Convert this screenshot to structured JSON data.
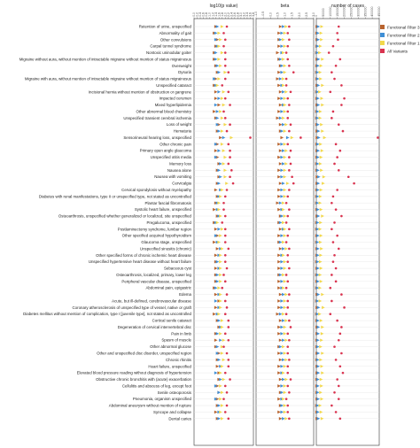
{
  "colors": {
    "Functional Filter 3": "#b8632e",
    "Functional Filter 2": "#3f8fd6",
    "Functional Filter 1": "#f2d84b",
    "All Variants": "#d9334f"
  },
  "chart_data": {
    "type": "scatter",
    "panels": [
      {
        "title": "log10(p value)",
        "ticks": [
          "0.0",
          "0.2",
          "0.4",
          "0.6",
          "0.8",
          "1.0",
          "1.2",
          "1.4",
          "1.6",
          "1.8",
          "2.0",
          "2.2",
          "2.4",
          "2.6",
          "2.8",
          "3.0",
          "3.2",
          "3.4",
          "3.6",
          "3.8"
        ],
        "xlim": [
          0.0,
          3.8
        ]
      },
      {
        "title": "beta",
        "ticks": [
          "-1.0",
          "-0.5",
          "0.0",
          "0.5",
          "1.0",
          "1.5",
          "2.0",
          "2.5",
          "3.0"
        ],
        "xlim": [
          -1.0,
          3.0
        ]
      },
      {
        "title": "number of cases",
        "ticks": [
          "0",
          "50000",
          "100000",
          "150000",
          "200000",
          "250000",
          "300000",
          "350000",
          "400000",
          "450000"
        ],
        "xlim": [
          0,
          450000
        ]
      }
    ],
    "legend": {
      "placement": "top-right",
      "entries": [
        "Functional Filter 3",
        "Functional Filter 2",
        "Functional Filter 1",
        "All Variants"
      ]
    },
    "series_names": [
      "Functional Filter 3",
      "Functional Filter 2",
      "Functional Filter 1",
      "All Variants"
    ],
    "markers": [
      "triangle",
      "triangle",
      "triangle",
      "dot"
    ],
    "categories": [
      "Retention of urine, unspecified",
      "Abnormality of gait",
      "Other convulsions",
      "Carpal tunnel syndrome",
      "Nontoxic uninodular goiter",
      "Migraine without aura, without mention of intractable migraine without mention of status migrainosus",
      "Overweight",
      "Dysuria",
      "Migraine with aura, without mention of intractable migraine without mention of status migrainosus",
      "Unspecified cataract",
      "Incisional hernia without mention of obstruction or gangrene",
      "Impacted cerumen",
      "Mixed hyperlipidemia",
      "Other abnormal blood chemistry",
      "Unspecified transient cerebral ischemia",
      "Loss of weight",
      "Hematuria",
      "Sensorineural hearing loss, unspecified",
      "Other chronic pain",
      "Primary open angle glaucoma",
      "Unspecified otitis media",
      "Memory loss",
      "Nausea alone",
      "Nausea with vomiting",
      "Cervicalgia",
      "Cervical spondylosis without myelopathy",
      "Diabetes with renal manifestations, type II or unspecified type, not stated as uncontrolled",
      "Plantar fascial fibromatosis",
      "Systolic heart failure, unspecified",
      "Osteoarthrosis, unspecified whether generalized or localized, site unspecified",
      "Pregalucoma, unspecified",
      "Postlaminectomy syndrome, lumbar region",
      "Other specified acquired hypothyroidism",
      "Glaucoma stage, unspecified",
      "Unspecified sinusitis (chronic)",
      "Other specified forms of chronic ischemic heart disease",
      "Unspecified hypertensive heart disease without heart failure",
      "Sebaceous cyst",
      "Osteoarthrosis, localized, primary, lower leg",
      "Peripheral vascular disease, unspecified",
      "Abdominal pain, epigastric",
      "Edema",
      "Acute, but ill-defined, cerebrovascular disease",
      "Coronary atherosclerosis of unspecified type of vessel, native or graft",
      "Diabetes mellitus without mention of complication, type I [juvenile type], not stated as uncontrolled",
      "Cortical senile cataract",
      "Degeneration of cervical intervertebral disc",
      "Pain in limb",
      "Spasm of muscle",
      "Other abnormal glucose",
      "Other and unspecified disc disorder, unspecified region",
      "Chronic rhinitis",
      "Heart failure, unspecified",
      "Elevated blood pressure reading without diagnosis of hypertension",
      "Obstructive chronic bronchitis with (acute) exacerbation",
      "Cellulitis and abscess of leg, except foot",
      "Senile osteoporosis",
      "Pneumonia, organism unspecified",
      "Abdominal aneurysm without mention of rupture",
      "Syncope and collapse",
      "Dental caries"
    ],
    "pvalues": [
      [
        1.4,
        1.5,
        1.8,
        2.1
      ],
      [
        1.3,
        1.4,
        1.6,
        1.9
      ],
      [
        1.5,
        1.4,
        1.7,
        2.0
      ],
      [
        1.4,
        1.5,
        1.6,
        1.9
      ],
      [
        1.3,
        1.4,
        1.8,
        2.0
      ],
      [
        1.3,
        1.4,
        1.6,
        2.0
      ],
      [
        1.4,
        1.5,
        1.7,
        2.0
      ],
      [
        1.5,
        1.6,
        2.0,
        2.2
      ],
      [
        1.4,
        1.3,
        1.6,
        2.0
      ],
      [
        1.3,
        1.4,
        1.5,
        1.8
      ],
      [
        1.4,
        1.6,
        1.9,
        2.2
      ],
      [
        1.4,
        1.6,
        1.8,
        2.0
      ],
      [
        1.6,
        1.4,
        1.9,
        2.3
      ],
      [
        1.3,
        1.5,
        1.7,
        1.9
      ],
      [
        1.4,
        1.5,
        1.8,
        2.0
      ],
      [
        1.6,
        1.5,
        2.0,
        2.3
      ],
      [
        1.5,
        1.6,
        1.8,
        2.1
      ],
      [
        1.7,
        1.9,
        2.4,
        3.6
      ],
      [
        1.5,
        1.4,
        1.8,
        2.2
      ],
      [
        1.4,
        1.6,
        1.9,
        2.3
      ],
      [
        1.5,
        1.4,
        2.0,
        2.3
      ],
      [
        1.6,
        1.7,
        1.9,
        2.2
      ],
      [
        1.5,
        1.6,
        2.0,
        2.4
      ],
      [
        1.6,
        1.7,
        2.0,
        2.3
      ],
      [
        1.5,
        1.6,
        2.1,
        2.5
      ],
      [
        1.4,
        1.7,
        1.8,
        2.1
      ],
      [
        1.5,
        1.6,
        1.7,
        2.0
      ],
      [
        1.4,
        1.5,
        1.6,
        1.9
      ],
      [
        1.3,
        1.5,
        1.6,
        1.9
      ],
      [
        1.5,
        1.6,
        1.7,
        2.0
      ],
      [
        1.3,
        1.4,
        1.5,
        1.8
      ],
      [
        1.4,
        1.6,
        1.8,
        2.0
      ],
      [
        1.5,
        1.4,
        1.7,
        2.0
      ],
      [
        1.3,
        1.5,
        1.6,
        2.0
      ],
      [
        1.5,
        1.7,
        1.8,
        2.2
      ],
      [
        1.4,
        1.6,
        1.7,
        2.0
      ],
      [
        1.4,
        1.5,
        1.7,
        2.0
      ],
      [
        1.4,
        1.6,
        1.7,
        2.1
      ],
      [
        1.4,
        1.5,
        1.7,
        1.9
      ],
      [
        1.4,
        1.5,
        1.7,
        2.0
      ],
      [
        1.3,
        1.4,
        1.6,
        1.8
      ],
      [
        1.4,
        1.6,
        1.7,
        2.1
      ],
      [
        1.6,
        1.4,
        1.7,
        2.0
      ],
      [
        1.4,
        1.6,
        1.7,
        2.1
      ],
      [
        1.3,
        1.5,
        1.6,
        2.0
      ],
      [
        1.5,
        1.6,
        1.8,
        2.2
      ],
      [
        1.6,
        1.7,
        1.8,
        2.2
      ],
      [
        1.4,
        1.5,
        1.7,
        2.0
      ],
      [
        1.4,
        1.7,
        1.9,
        2.2
      ],
      [
        1.4,
        1.5,
        1.8,
        1.9
      ],
      [
        1.6,
        1.5,
        1.8,
        2.1
      ],
      [
        1.5,
        1.6,
        1.9,
        2.2
      ],
      [
        1.5,
        1.7,
        1.8,
        2.2
      ],
      [
        1.6,
        1.4,
        1.7,
        2.0
      ],
      [
        1.6,
        1.7,
        1.9,
        2.3
      ],
      [
        1.5,
        1.4,
        1.7,
        2.0
      ],
      [
        1.6,
        1.6,
        1.8,
        2.1
      ],
      [
        1.5,
        1.4,
        1.7,
        1.9
      ],
      [
        1.5,
        1.6,
        1.8,
        2.1
      ],
      [
        1.4,
        1.6,
        1.7,
        2.0
      ],
      [
        1.5,
        1.6,
        1.8,
        2.2
      ]
    ],
    "betas": [
      [
        0.7,
        0.9,
        1.1,
        1.3
      ],
      [
        0.6,
        0.8,
        1.0,
        1.2
      ],
      [
        0.6,
        0.7,
        0.9,
        1.3
      ],
      [
        0.6,
        0.8,
        1.0,
        1.2
      ],
      [
        0.5,
        0.8,
        0.9,
        1.1
      ],
      [
        0.6,
        0.7,
        0.9,
        1.2
      ],
      [
        0.7,
        0.8,
        1.0,
        1.3
      ],
      [
        0.6,
        0.8,
        1.0,
        1.6
      ],
      [
        0.5,
        0.7,
        0.9,
        1.1
      ],
      [
        0.6,
        0.8,
        0.9,
        1.1
      ],
      [
        0.7,
        0.9,
        1.1,
        1.4
      ],
      [
        0.6,
        0.8,
        1.0,
        1.2
      ],
      [
        0.7,
        0.9,
        1.0,
        1.3
      ],
      [
        0.6,
        0.8,
        1.0,
        1.2
      ],
      [
        0.5,
        0.7,
        0.9,
        1.2
      ],
      [
        0.7,
        0.9,
        1.1,
        1.4
      ],
      [
        0.7,
        0.8,
        1.0,
        1.3
      ],
      [
        0.8,
        1.2,
        1.5,
        2.1
      ],
      [
        0.6,
        0.8,
        1.0,
        1.2
      ],
      [
        0.7,
        0.9,
        1.1,
        1.4
      ],
      [
        0.6,
        0.8,
        1.0,
        1.3
      ],
      [
        0.7,
        0.9,
        1.1,
        1.4
      ],
      [
        0.6,
        0.8,
        1.0,
        1.3
      ],
      [
        0.6,
        0.8,
        1.0,
        1.5
      ],
      [
        0.7,
        0.9,
        1.2,
        1.6
      ],
      [
        0.6,
        0.8,
        1.0,
        1.3
      ],
      [
        0.6,
        0.8,
        1.0,
        1.2
      ],
      [
        0.5,
        0.7,
        0.9,
        1.1
      ],
      [
        0.6,
        0.8,
        0.9,
        1.3
      ],
      [
        0.7,
        0.8,
        1.0,
        1.2
      ],
      [
        0.6,
        0.7,
        0.9,
        1.1
      ],
      [
        0.7,
        0.9,
        1.0,
        1.3
      ],
      [
        0.6,
        0.8,
        1.0,
        1.2
      ],
      [
        0.6,
        0.7,
        0.9,
        1.1
      ],
      [
        0.7,
        0.9,
        1.1,
        1.3
      ],
      [
        0.6,
        0.8,
        0.9,
        1.2
      ],
      [
        0.6,
        0.8,
        1.0,
        1.2
      ],
      [
        0.6,
        0.8,
        1.0,
        1.3
      ],
      [
        0.6,
        0.7,
        0.9,
        1.1
      ],
      [
        0.6,
        0.8,
        1.0,
        1.2
      ],
      [
        0.6,
        0.8,
        0.9,
        1.1
      ],
      [
        0.7,
        0.9,
        1.1,
        1.3
      ],
      [
        0.6,
        0.8,
        1.0,
        1.2
      ],
      [
        0.6,
        0.8,
        1.0,
        1.2
      ],
      [
        0.5,
        0.7,
        0.9,
        1.1
      ],
      [
        0.7,
        0.9,
        1.1,
        1.3
      ],
      [
        0.6,
        0.8,
        1.0,
        1.4
      ],
      [
        0.6,
        0.8,
        1.0,
        1.2
      ],
      [
        0.7,
        0.9,
        1.1,
        1.3
      ],
      [
        0.6,
        0.7,
        0.9,
        1.2
      ],
      [
        0.6,
        0.8,
        1.0,
        1.2
      ],
      [
        0.7,
        0.9,
        1.1,
        1.3
      ],
      [
        0.6,
        0.8,
        1.0,
        1.2
      ],
      [
        0.6,
        0.8,
        0.9,
        1.2
      ],
      [
        0.7,
        0.9,
        1.1,
        1.4
      ],
      [
        0.6,
        0.8,
        1.0,
        1.2
      ],
      [
        0.7,
        0.8,
        1.0,
        1.3
      ],
      [
        0.6,
        0.8,
        0.9,
        1.1
      ],
      [
        0.7,
        0.8,
        1.0,
        1.2
      ],
      [
        0.6,
        0.8,
        1.0,
        1.2
      ],
      [
        0.7,
        0.9,
        1.1,
        1.3
      ]
    ],
    "cases": [
      [
        5000,
        15000,
        40000,
        160000
      ],
      [
        4000,
        12000,
        35000,
        150000
      ],
      [
        5000,
        14000,
        38000,
        155000
      ],
      [
        4000,
        10000,
        30000,
        120000
      ],
      [
        3000,
        8000,
        25000,
        90000
      ],
      [
        5000,
        16000,
        45000,
        170000
      ],
      [
        4000,
        12000,
        35000,
        140000
      ],
      [
        3000,
        9000,
        28000,
        110000
      ],
      [
        4000,
        11000,
        32000,
        130000
      ],
      [
        5000,
        15000,
        45000,
        180000
      ],
      [
        3000,
        9000,
        25000,
        100000
      ],
      [
        4000,
        12000,
        40000,
        200000
      ],
      [
        5000,
        15000,
        45000,
        180000
      ],
      [
        3000,
        10000,
        30000,
        120000
      ],
      [
        3000,
        9000,
        28000,
        110000
      ],
      [
        4000,
        12000,
        38000,
        160000
      ],
      [
        5000,
        16000,
        45000,
        190000
      ],
      [
        6000,
        18000,
        60000,
        440000
      ],
      [
        4000,
        11000,
        32000,
        140000
      ],
      [
        5000,
        14000,
        42000,
        170000
      ],
      [
        4000,
        12000,
        35000,
        150000
      ],
      [
        3000,
        10000,
        30000,
        130000
      ],
      [
        4000,
        12000,
        38000,
        160000
      ],
      [
        6000,
        18000,
        55000,
        230000
      ],
      [
        5000,
        15000,
        50000,
        270000
      ],
      [
        4000,
        12000,
        35000,
        150000
      ],
      [
        3000,
        10000,
        30000,
        120000
      ],
      [
        3000,
        9000,
        28000,
        110000
      ],
      [
        4000,
        12000,
        35000,
        140000
      ],
      [
        5000,
        15000,
        45000,
        180000
      ],
      [
        3000,
        10000,
        32000,
        130000
      ],
      [
        3000,
        10000,
        28000,
        110000
      ],
      [
        4000,
        12000,
        35000,
        150000
      ],
      [
        3000,
        9000,
        30000,
        120000
      ],
      [
        4000,
        12000,
        38000,
        160000
      ],
      [
        4000,
        11000,
        33000,
        130000
      ],
      [
        3000,
        10000,
        30000,
        120000
      ],
      [
        4000,
        12000,
        35000,
        140000
      ],
      [
        3000,
        10000,
        28000,
        110000
      ],
      [
        4000,
        12000,
        35000,
        140000
      ],
      [
        3000,
        9000,
        27000,
        100000
      ],
      [
        5000,
        15000,
        45000,
        180000
      ],
      [
        3000,
        9000,
        28000,
        110000
      ],
      [
        5000,
        16000,
        50000,
        200000
      ],
      [
        3000,
        9000,
        25000,
        100000
      ],
      [
        4000,
        12000,
        35000,
        150000
      ],
      [
        5000,
        15000,
        45000,
        180000
      ],
      [
        5000,
        14000,
        42000,
        170000
      ],
      [
        4000,
        12000,
        38000,
        160000
      ],
      [
        4000,
        11000,
        32000,
        130000
      ],
      [
        5000,
        15000,
        45000,
        180000
      ],
      [
        4000,
        11000,
        33000,
        140000
      ],
      [
        5000,
        14000,
        40000,
        170000
      ],
      [
        5000,
        15000,
        45000,
        190000
      ],
      [
        4000,
        12000,
        35000,
        150000
      ],
      [
        4000,
        12000,
        38000,
        160000
      ],
      [
        4000,
        11000,
        32000,
        130000
      ],
      [
        5000,
        14000,
        40000,
        160000
      ],
      [
        3000,
        10000,
        28000,
        110000
      ],
      [
        4000,
        12000,
        35000,
        140000
      ],
      [
        5000,
        15000,
        42000,
        170000
      ]
    ]
  }
}
